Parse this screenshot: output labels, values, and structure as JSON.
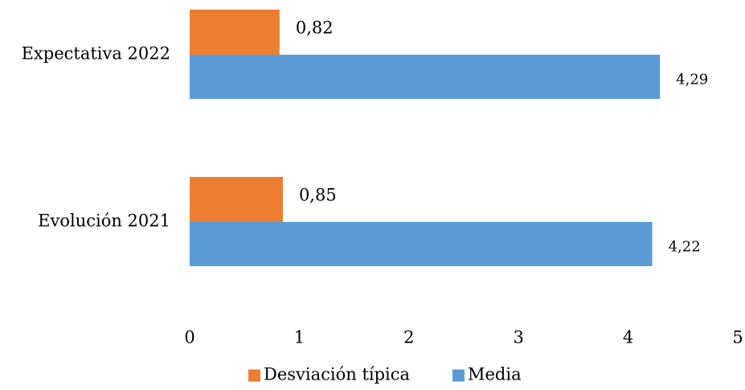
{
  "chart_data": {
    "type": "bar",
    "orientation": "horizontal",
    "categories": [
      "Expectativa 2022",
      "Evolución 2021"
    ],
    "series": [
      {
        "name": "Desviación típica",
        "values": [
          0.82,
          0.85
        ],
        "labels": [
          "0,82",
          "0,85"
        ],
        "color": "#ED7D31"
      },
      {
        "name": "Media",
        "values": [
          4.29,
          4.22
        ],
        "labels": [
          "4,29",
          "4,22"
        ],
        "color": "#5B9BD5"
      }
    ],
    "xlim": [
      0,
      5
    ],
    "xticks": [
      {
        "value": 0,
        "label": "0"
      },
      {
        "value": 1,
        "label": "1"
      },
      {
        "value": 2,
        "label": "2"
      },
      {
        "value": 3,
        "label": "3"
      },
      {
        "value": 4,
        "label": "4"
      },
      {
        "value": 5,
        "label": "5"
      }
    ],
    "grid": false,
    "legend_position": "bottom"
  }
}
